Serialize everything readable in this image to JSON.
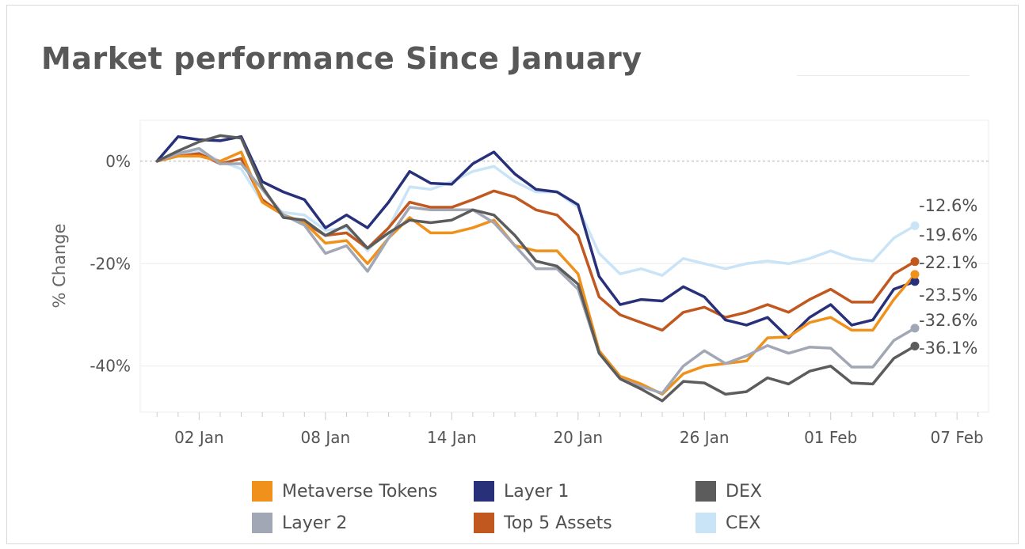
{
  "title": "Market performance Since January",
  "chart_data": {
    "type": "line",
    "title": "Market performance Since January",
    "ylabel": "% Change",
    "xlabel": "",
    "ylim": [
      -49,
      8
    ],
    "yticks": [
      0,
      -20,
      -40
    ],
    "ytick_labels": [
      "0%",
      "-20%",
      "-40%"
    ],
    "xticks": [
      {
        "day": 2,
        "label": "02 Jan"
      },
      {
        "day": 8,
        "label": "08 Jan"
      },
      {
        "day": 14,
        "label": "14 Jan"
      },
      {
        "day": 20,
        "label": "20 Jan"
      },
      {
        "day": 26,
        "label": "26 Jan"
      },
      {
        "day": 32,
        "label": "01 Feb"
      },
      {
        "day": 38,
        "label": "07 Feb"
      }
    ],
    "xlim": [
      -0.8,
      39.5
    ],
    "zero_line": true,
    "grid": "horizontal",
    "legend_position": "bottom",
    "series": [
      {
        "name": "CEX",
        "color": "#c9e4f7",
        "values": [
          0,
          1.5,
          2,
          0,
          -1.5,
          -8,
          -10,
          -10.5,
          -13.5,
          -13,
          -17.5,
          -13,
          -5,
          -5.5,
          -4,
          -2,
          -1,
          -4,
          -6,
          -6,
          -9,
          -18,
          -22,
          -21,
          -22.3,
          -19,
          -20,
          -21,
          -20,
          -19.5,
          -20,
          -19,
          -17.5,
          -19,
          -19.5,
          -15,
          -12.6
        ]
      },
      {
        "name": "Top 5 Assets",
        "color": "#c0581f",
        "values": [
          0,
          1,
          1.5,
          -0.5,
          0.5,
          -7.5,
          -10.5,
          -12,
          -14.5,
          -14,
          -17,
          -13,
          -8,
          -9,
          -9,
          -7.5,
          -5.8,
          -7,
          -9.5,
          -10.5,
          -14.5,
          -26.5,
          -30,
          -31.5,
          -33,
          -29.5,
          -28.5,
          -30.5,
          -29.5,
          -28,
          -29.5,
          -27,
          -25,
          -27.5,
          -27.5,
          -22,
          -19.6
        ]
      },
      {
        "name": "Layer 1",
        "color": "#28307a",
        "values": [
          0,
          4.8,
          4.2,
          4,
          4.8,
          -4,
          -6,
          -7.5,
          -13,
          -10.5,
          -13,
          -8,
          -2,
          -4.3,
          -4.5,
          -0.5,
          1.8,
          -2.5,
          -5.5,
          -6,
          -8.5,
          -22.5,
          -28,
          -27,
          -27.3,
          -24.5,
          -26.5,
          -31,
          -32,
          -30.5,
          -34.5,
          -30.5,
          -28,
          -32,
          -31,
          -25,
          -23.5
        ]
      },
      {
        "name": "Metaverse Tokens",
        "color": "#f0911c",
        "values": [
          0,
          1,
          1,
          0,
          1.8,
          -8,
          -10.5,
          -12,
          -16,
          -15.5,
          -20,
          -15,
          -11,
          -14,
          -14,
          -13,
          -11.5,
          -16.5,
          -17.5,
          -17.5,
          -22,
          -37,
          -42,
          -43.5,
          -45.5,
          -41.5,
          -40,
          -39.5,
          -39,
          -34.5,
          -34.3,
          -31.5,
          -30.5,
          -33,
          -33,
          -27,
          -22.1
        ]
      },
      {
        "name": "Layer 2",
        "color": "#a1a7b5",
        "values": [
          0,
          1.5,
          2.5,
          -0.5,
          -0.5,
          -5.5,
          -10.5,
          -12.5,
          -18,
          -16.5,
          -21.5,
          -15,
          -9,
          -9.5,
          -9.5,
          -9.5,
          -12,
          -16.5,
          -21,
          -21,
          -25,
          -37.5,
          -42.5,
          -44,
          -45.3,
          -40,
          -37,
          -39.5,
          -38,
          -36,
          -37.5,
          -36.3,
          -36.5,
          -40.2,
          -40.2,
          -35,
          -32.6
        ]
      },
      {
        "name": "DEX",
        "color": "#5c5c5c",
        "values": [
          0,
          2,
          3.8,
          5,
          4.5,
          -5,
          -11,
          -11.5,
          -14.5,
          -12.5,
          -17,
          -14,
          -11.5,
          -12,
          -11.5,
          -9.5,
          -10.5,
          -14.5,
          -19.5,
          -20.5,
          -24,
          -37.5,
          -42.5,
          -44.5,
          -46.8,
          -43,
          -43.3,
          -45.5,
          -45,
          -42.3,
          -43.5,
          -41,
          -40,
          -43.3,
          -43.5,
          -38.5,
          -36.1
        ]
      }
    ],
    "end_labels": [
      "-12.6%",
      "-19.6%",
      "-22.1%",
      "-23.5%",
      "-32.6%",
      "-36.1%"
    ]
  },
  "legend": [
    {
      "label": "Metaverse Tokens",
      "color": "#f0911c"
    },
    {
      "label": "Layer 1",
      "color": "#28307a"
    },
    {
      "label": "DEX",
      "color": "#5c5c5c"
    },
    {
      "label": "Layer 2",
      "color": "#a1a7b5"
    },
    {
      "label": "Top 5 Assets",
      "color": "#c0581f"
    },
    {
      "label": "CEX",
      "color": "#c9e4f7"
    }
  ]
}
